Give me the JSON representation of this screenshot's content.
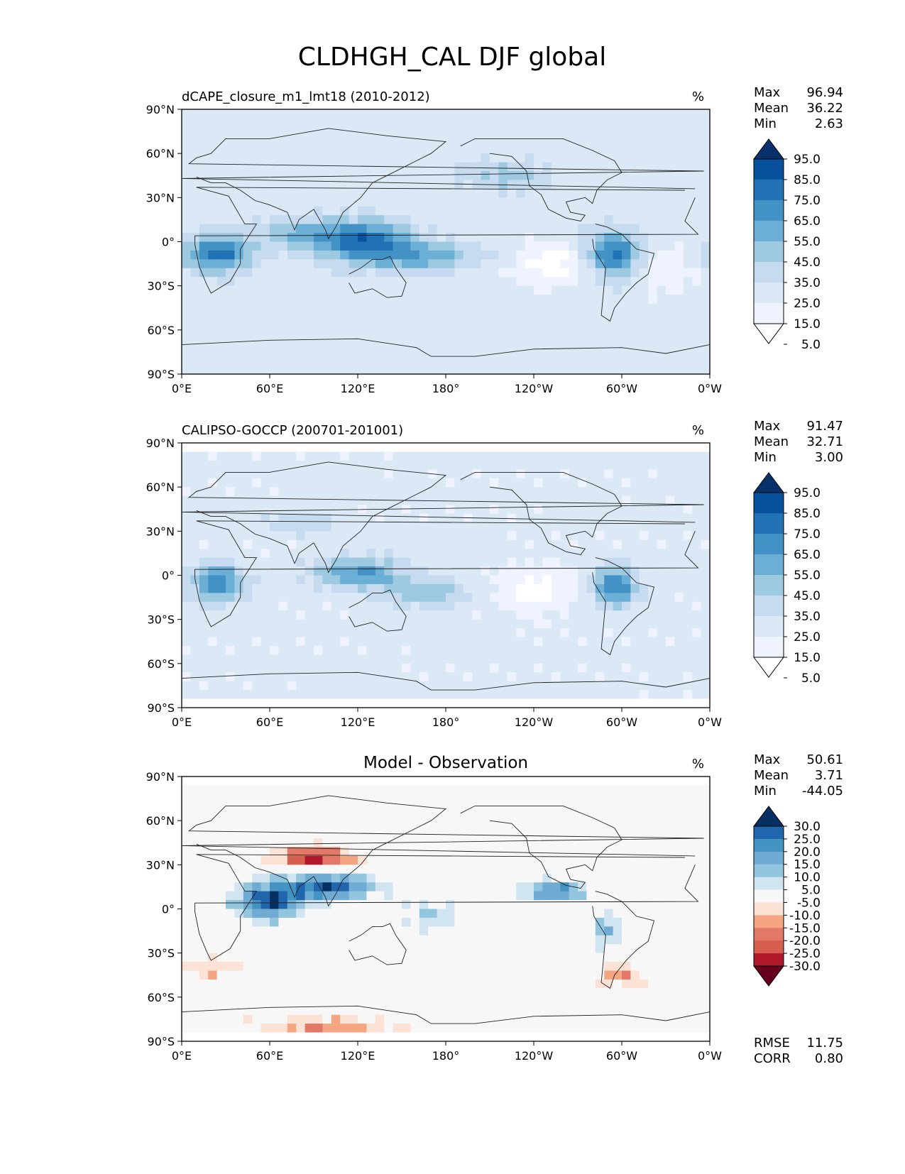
{
  "page_title": "CLDHGH_CAL DJF global",
  "chart_data": [
    {
      "type": "heatmap",
      "title": "dCAPE_closure_m1_lmt18 (2010-2012)",
      "units": "%",
      "stats": [
        {
          "label": "Max",
          "value": "96.94"
        },
        {
          "label": "Mean",
          "value": "36.22"
        },
        {
          "label": "Min",
          "value": "2.63"
        }
      ],
      "extra_stats": [],
      "xticks": [
        "0°E",
        "60°E",
        "120°E",
        "180°",
        "120°W",
        "60°W",
        "0°W"
      ],
      "yticks": [
        "90°N",
        "60°N",
        "30°N",
        "0°",
        "30°S",
        "60°S",
        "90°S"
      ],
      "xlim": [
        0,
        360
      ],
      "ylim": [
        -90,
        90
      ],
      "colorbar": {
        "labels": [
          "95.0",
          "85.0",
          "75.0",
          "65.0",
          "55.0",
          "45.0",
          "35.0",
          "25.0",
          "15.0",
          "5.0"
        ],
        "colors": [
          "#08306b",
          "#08519c",
          "#2171b5",
          "#4292c6",
          "#6baed6",
          "#9ecae1",
          "#c6dbef",
          "#dbe9f6",
          "#eff3ff",
          "#ffffff"
        ],
        "extend": "both"
      },
      "field": {
        "base": 30,
        "blobs": [
          {
            "lon": 25,
            "lat": -8,
            "val": 50,
            "rlon": 22,
            "rlat": 12
          },
          {
            "lon": 80,
            "lat": 5,
            "val": 25,
            "rlon": 30,
            "rlat": 10
          },
          {
            "lon": 125,
            "lat": 0,
            "val": 50,
            "rlon": 30,
            "rlat": 14
          },
          {
            "lon": 165,
            "lat": -10,
            "val": 30,
            "rlon": 35,
            "rlat": 10
          },
          {
            "lon": 295,
            "lat": -8,
            "val": 50,
            "rlon": 18,
            "rlat": 15
          },
          {
            "lon": 220,
            "lat": 45,
            "val": 18,
            "rlon": 30,
            "rlat": 10
          },
          {
            "lon": 250,
            "lat": -15,
            "val": -20,
            "rlon": 25,
            "rlat": 15
          },
          {
            "lon": 330,
            "lat": -20,
            "val": -15,
            "rlon": 20,
            "rlat": 15
          }
        ]
      }
    },
    {
      "type": "heatmap",
      "title": "CALIPSO-GOCCP (200701-201001)",
      "units": "%",
      "stats": [
        {
          "label": "Max",
          "value": "91.47"
        },
        {
          "label": "Mean",
          "value": "32.71"
        },
        {
          "label": "Min",
          "value": "3.00"
        }
      ],
      "extra_stats": [],
      "xticks": [
        "0°E",
        "60°E",
        "120°E",
        "180°",
        "120°W",
        "60°W",
        "0°W"
      ],
      "yticks": [
        "90°N",
        "60°N",
        "30°N",
        "0°",
        "30°S",
        "60°S",
        "90°S"
      ],
      "xlim": [
        0,
        360
      ],
      "ylim": [
        -90,
        90
      ],
      "colorbar": {
        "labels": [
          "95.0",
          "85.0",
          "75.0",
          "65.0",
          "55.0",
          "45.0",
          "35.0",
          "25.0",
          "15.0",
          "5.0"
        ],
        "colors": [
          "#08306b",
          "#08519c",
          "#2171b5",
          "#4292c6",
          "#6baed6",
          "#9ecae1",
          "#c6dbef",
          "#dbe9f6",
          "#eff3ff",
          "#ffffff"
        ],
        "extend": "both"
      },
      "field": {
        "base": 28,
        "blobs": [
          {
            "lon": 25,
            "lat": -5,
            "val": 45,
            "rlon": 18,
            "rlat": 12
          },
          {
            "lon": 120,
            "lat": 2,
            "val": 40,
            "rlon": 30,
            "rlat": 10
          },
          {
            "lon": 165,
            "lat": -12,
            "val": 25,
            "rlon": 30,
            "rlat": 10
          },
          {
            "lon": 295,
            "lat": -8,
            "val": 50,
            "rlon": 15,
            "rlat": 13
          },
          {
            "lon": 80,
            "lat": 35,
            "val": 15,
            "rlon": 25,
            "rlat": 8
          },
          {
            "lon": 240,
            "lat": -10,
            "val": -18,
            "rlon": 28,
            "rlat": 14
          }
        ]
      }
    },
    {
      "type": "heatmap",
      "title": "Model - Observation",
      "units": "%",
      "stats": [
        {
          "label": "Max",
          "value": "50.61"
        },
        {
          "label": "Mean",
          "value": "3.71"
        },
        {
          "label": "Min",
          "value": "-44.05"
        }
      ],
      "extra_stats": [
        {
          "label": "RMSE",
          "value": "11.75"
        },
        {
          "label": "CORR",
          "value": "0.80"
        }
      ],
      "xticks": [
        "0°E",
        "60°E",
        "120°E",
        "180°",
        "120°W",
        "60°W",
        "0°W"
      ],
      "yticks": [
        "90°N",
        "60°N",
        "30°N",
        "0°",
        "30°S",
        "60°S",
        "90°S"
      ],
      "xlim": [
        0,
        360
      ],
      "ylim": [
        -90,
        90
      ],
      "colorbar": {
        "labels": [
          "30.0",
          "25.0",
          "20.0",
          "15.0",
          "10.0",
          "5.0",
          "-5.0",
          "-10.0",
          "-15.0",
          "-20.0",
          "-25.0",
          "-30.0"
        ],
        "colors": [
          "#053061",
          "#2166ac",
          "#4393c3",
          "#6fabd3",
          "#92c5de",
          "#d1e5f0",
          "#f7f7f7",
          "#fbe2d4",
          "#f4a582",
          "#e27867",
          "#d6604d",
          "#b2182b",
          "#67001f"
        ],
        "extend": "both"
      },
      "field": {
        "base": 0,
        "blobs": [
          {
            "lon": 60,
            "lat": 5,
            "val": 30,
            "rlon": 22,
            "rlat": 12
          },
          {
            "lon": 100,
            "lat": 15,
            "val": 30,
            "rlon": 30,
            "rlat": 8
          },
          {
            "lon": 90,
            "lat": 35,
            "val": -30,
            "rlon": 25,
            "rlat": 6
          },
          {
            "lon": 255,
            "lat": 12,
            "val": 25,
            "rlon": 20,
            "rlat": 6
          },
          {
            "lon": 290,
            "lat": -15,
            "val": 15,
            "rlon": 10,
            "rlat": 12
          },
          {
            "lon": 100,
            "lat": -80,
            "val": -15,
            "rlon": 45,
            "rlat": 6
          },
          {
            "lon": 20,
            "lat": -40,
            "val": -10,
            "rlon": 20,
            "rlat": 8
          },
          {
            "lon": 300,
            "lat": -45,
            "val": -15,
            "rlon": 15,
            "rlat": 8
          },
          {
            "lon": 170,
            "lat": -5,
            "val": 10,
            "rlon": 20,
            "rlat": 10
          }
        ]
      }
    }
  ]
}
